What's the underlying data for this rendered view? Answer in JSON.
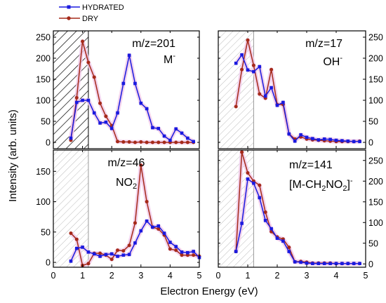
{
  "figure": {
    "xlabel": "Electron Energy (eV)",
    "ylabel": "Intensity (arb. units)"
  },
  "legend": [
    {
      "label": "HYDRATED",
      "color": "#1a1adf"
    },
    {
      "label": "DRY",
      "color": "#a52a1a"
    }
  ],
  "colors": {
    "hydrated": "#1a1adf",
    "dry": "#a52a1a",
    "shade": "#f0c8e8"
  },
  "chart_data": [
    {
      "type": "line",
      "panel": "top-left",
      "annotation": {
        "line1": "m/z=201",
        "line2": "M",
        "sup": "-",
        "sub": ""
      },
      "xlim": [
        0,
        5
      ],
      "ylim": [
        -15,
        265
      ],
      "yticks": [
        0,
        50,
        100,
        150,
        200,
        250
      ],
      "yaxis_side": "left",
      "hatched_region": {
        "range": [
          0,
          1.2
        ],
        "style": "dense"
      },
      "series": [
        {
          "name": "HYDRATED",
          "x": [
            0.6,
            0.8,
            1.0,
            1.2,
            1.4,
            1.6,
            1.8,
            2.0,
            2.2,
            2.4,
            2.6,
            2.8,
            3.0,
            3.2,
            3.4,
            3.6,
            3.8,
            4.0,
            4.2,
            4.4,
            4.6,
            4.8
          ],
          "y": [
            10,
            95,
            100,
            100,
            70,
            46,
            48,
            33,
            70,
            140,
            207,
            140,
            93,
            80,
            35,
            33,
            15,
            5,
            32,
            22,
            10,
            2
          ]
        },
        {
          "name": "DRY",
          "x": [
            0.6,
            0.8,
            1.0,
            1.2,
            1.4,
            1.6,
            1.8,
            2.0,
            2.2,
            2.4,
            2.6,
            2.8,
            3.0,
            3.2,
            3.4,
            3.6,
            3.8,
            4.0,
            4.2,
            4.4,
            4.6,
            4.8
          ],
          "y": [
            5,
            106,
            240,
            190,
            155,
            93,
            62,
            40,
            2,
            1,
            1,
            0,
            1,
            0,
            0,
            0,
            0,
            0,
            0,
            0,
            0,
            0
          ]
        }
      ]
    },
    {
      "type": "line",
      "panel": "top-right",
      "annotation": {
        "line1": "m/z=17",
        "line2": "OH",
        "sup": "-",
        "sub": ""
      },
      "xlim": [
        0,
        5
      ],
      "ylim": [
        -15,
        265
      ],
      "yticks": [
        0,
        50,
        100,
        150,
        200,
        250
      ],
      "yaxis_side": "right",
      "hatched_region": {
        "range": [
          0,
          1.2
        ],
        "style": "light"
      },
      "series": [
        {
          "name": "HYDRATED",
          "x": [
            0.6,
            0.8,
            1.0,
            1.2,
            1.4,
            1.6,
            1.8,
            2.0,
            2.2,
            2.4,
            2.6,
            2.8,
            3.0,
            3.2,
            3.4,
            3.6,
            3.8,
            4.0,
            4.2,
            4.4,
            4.6,
            4.8
          ],
          "y": [
            188,
            208,
            172,
            168,
            180,
            110,
            130,
            88,
            95,
            20,
            3,
            18,
            12,
            9,
            6,
            8,
            7,
            5,
            4,
            3,
            2,
            2
          ]
        },
        {
          "name": "DRY",
          "x": [
            0.6,
            0.8,
            1.0,
            1.2,
            1.4,
            1.6,
            1.8,
            2.0,
            2.2,
            2.4,
            2.6,
            2.8,
            3.0,
            3.2,
            3.4,
            3.6,
            3.8,
            4.0,
            4.2,
            4.4,
            4.6,
            4.8
          ],
          "y": [
            85,
            173,
            243,
            183,
            115,
            105,
            173,
            90,
            90,
            20,
            8,
            13,
            8,
            6,
            5,
            4,
            3,
            2,
            2,
            2,
            2,
            3
          ]
        }
      ]
    },
    {
      "type": "line",
      "panel": "bottom-left",
      "annotation": {
        "line1": "m/z=46",
        "line2": "NO",
        "sup": "-",
        "sub": "2"
      },
      "xlim": [
        0,
        5
      ],
      "ylim": [
        -8,
        185
      ],
      "yticks": [
        0,
        50,
        100,
        150
      ],
      "yaxis_side": "left",
      "hatched_region": {
        "range": [
          0,
          1.2
        ],
        "style": "light"
      },
      "series": [
        {
          "name": "HYDRATED",
          "x": [
            0.6,
            0.8,
            1.0,
            1.2,
            1.4,
            1.6,
            1.8,
            2.0,
            2.2,
            2.4,
            2.6,
            2.8,
            3.0,
            3.2,
            3.4,
            3.6,
            3.8,
            4.0,
            4.2,
            4.4,
            4.6,
            4.8,
            5.0
          ],
          "y": [
            2,
            23,
            25,
            17,
            14,
            10,
            13,
            14,
            10,
            12,
            13,
            32,
            52,
            68,
            58,
            60,
            48,
            33,
            26,
            17,
            16,
            18,
            8
          ]
        },
        {
          "name": "DRY",
          "x": [
            0.6,
            0.8,
            1.0,
            1.2,
            1.4,
            1.6,
            1.8,
            2.0,
            2.2,
            2.4,
            2.6,
            2.8,
            3.0,
            3.2,
            3.4,
            3.6,
            3.8,
            4.0,
            4.2,
            4.4,
            4.6,
            4.8,
            5.0
          ],
          "y": [
            48,
            38,
            -5,
            -2,
            15,
            15,
            12,
            5,
            20,
            19,
            28,
            65,
            160,
            100,
            58,
            55,
            45,
            22,
            20,
            12,
            12,
            12,
            10
          ]
        }
      ]
    },
    {
      "type": "line",
      "panel": "bottom-right",
      "annotation": {
        "line1": "m/z=141",
        "line2": "[M-CH",
        "sub": "2",
        "line3": "NO",
        "sub2": "2",
        "line4": "]",
        "sup": "-"
      },
      "xlim": [
        0,
        5
      ],
      "ylim": [
        -8,
        275
      ],
      "yticks": [
        0,
        50,
        100,
        150,
        200,
        250
      ],
      "yaxis_side": "right",
      "hatched_region": {
        "range": [
          0,
          1.2
        ],
        "style": "light"
      },
      "series": [
        {
          "name": "HYDRATED",
          "x": [
            0.6,
            0.8,
            1.0,
            1.2,
            1.4,
            1.6,
            1.8,
            2.0,
            2.2,
            2.4,
            2.6,
            2.8,
            3.0,
            3.2,
            3.4,
            3.6,
            3.8,
            4.0,
            4.2,
            4.4,
            4.6,
            4.8
          ],
          "y": [
            30,
            98,
            205,
            195,
            160,
            105,
            85,
            62,
            55,
            30,
            5,
            4,
            2,
            1,
            1,
            1,
            1,
            1,
            1,
            1,
            1,
            1
          ]
        },
        {
          "name": "DRY",
          "x": [
            0.6,
            0.8,
            1.0,
            1.2,
            1.4,
            1.6,
            1.8,
            2.0,
            2.2,
            2.4,
            2.6,
            2.8,
            3.0,
            3.2,
            3.4,
            3.6,
            3.8,
            4.0,
            4.2,
            4.4,
            4.6,
            4.8
          ],
          "y": [
            30,
            270,
            220,
            200,
            190,
            125,
            78,
            65,
            60,
            40,
            5,
            6,
            4,
            2,
            2,
            2,
            2,
            1,
            1,
            1,
            1,
            1
          ]
        }
      ]
    }
  ],
  "shared_axes": {
    "xticks": [
      0,
      1,
      2,
      3,
      4,
      5
    ]
  }
}
